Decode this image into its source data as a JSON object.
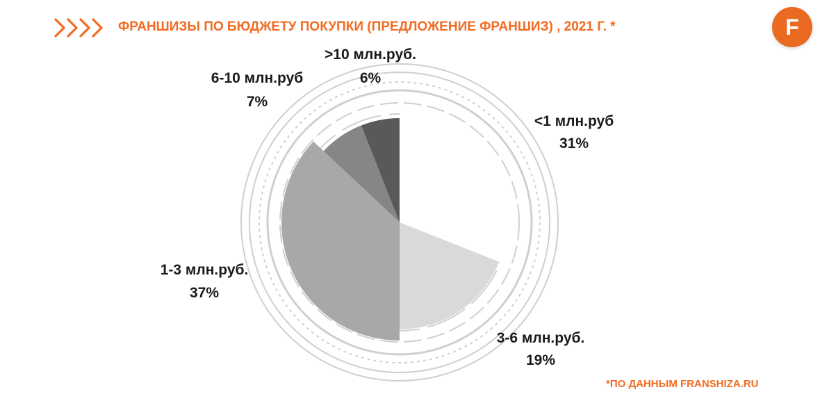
{
  "header": {
    "title": "ФРАНШИЗЫ ПО БЮДЖЕТУ ПОКУПКИ (ПРЕДЛОЖЕНИЕ ФРАНШИЗ) , 2021 Г. *",
    "logo_letter": "F"
  },
  "footer": {
    "source": "*ПО ДАННЫМ FRANSHIZA.RU"
  },
  "colors": {
    "accent": "#f26b21",
    "logo": "#ea6a22",
    "text": "#1a1a1a"
  },
  "chart_data": {
    "type": "pie",
    "title": "ФРАНШИЗЫ ПО БЮДЖЕТУ ПОКУПКИ (ПРЕДЛОЖЕНИЕ ФРАНШИЗ) , 2021 Г. *",
    "start_angle_deg": 0,
    "direction": "clockwise",
    "slices": [
      {
        "label": "<1 млн.руб",
        "value": 31,
        "value_label": "31%",
        "color": "#ffffff"
      },
      {
        "label": "3-6 млн.руб.",
        "value": 19,
        "value_label": "19%",
        "color": "#d9d9d9"
      },
      {
        "label": "1-3 млн.руб.",
        "value": 37,
        "value_label": "37%",
        "color": "#a8a8a8"
      },
      {
        "label": "6-10 млн.руб",
        "value": 7,
        "value_label": "7%",
        "color": "#868686"
      },
      {
        "label": ">10 млн.руб.",
        "value": 6,
        "value_label": "6%",
        "color": "#595959"
      }
    ]
  }
}
